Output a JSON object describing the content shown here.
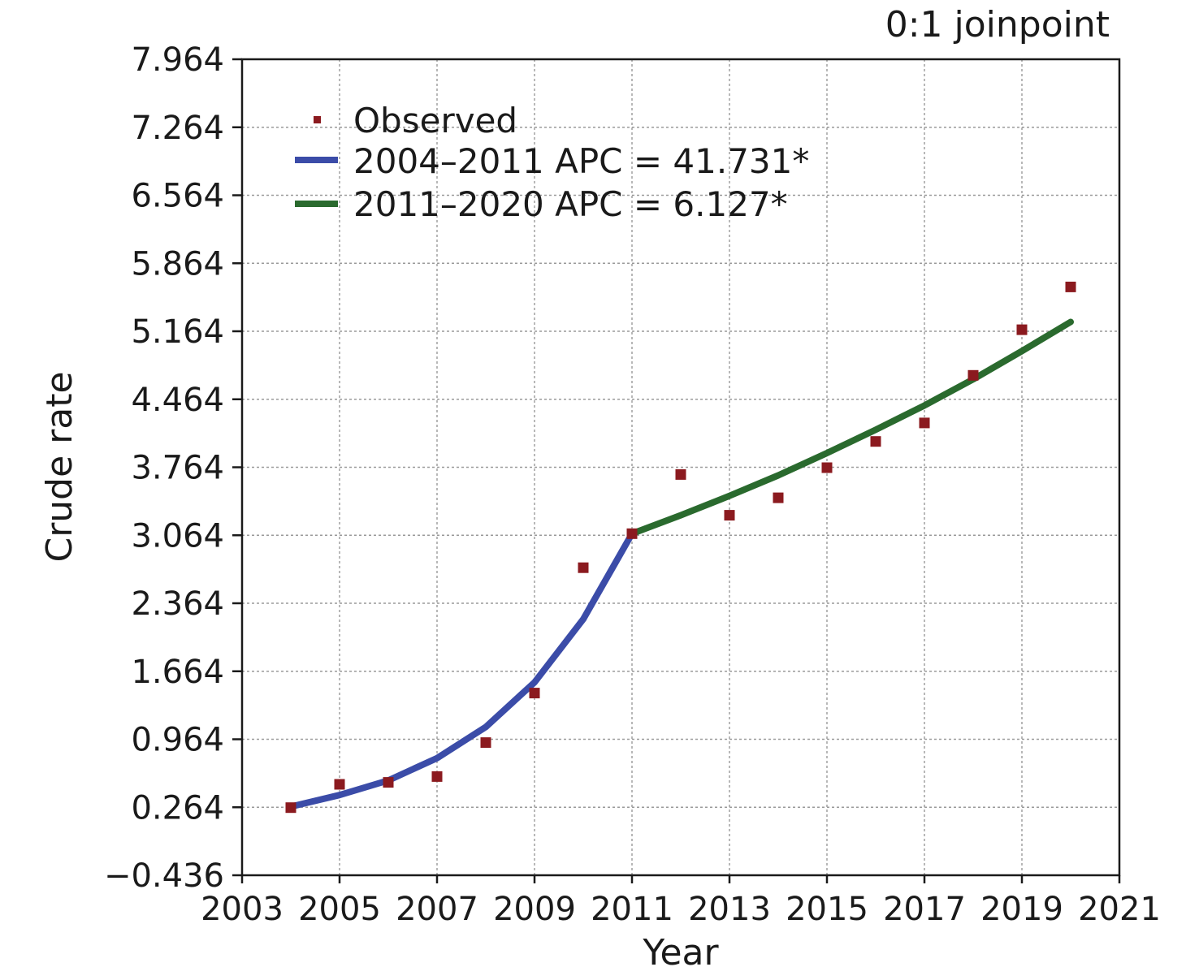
{
  "chart_data": {
    "type": "line",
    "annotation": "0:1 joinpoint",
    "xlabel": "Year",
    "ylabel": "Crude rate",
    "xlim": [
      2003,
      2021
    ],
    "ylim": [
      -0.436,
      7.964
    ],
    "x_ticks": [
      "2003",
      "2005",
      "2007",
      "2009",
      "2011",
      "2013",
      "2015",
      "2017",
      "2019",
      "2021"
    ],
    "y_ticks": [
      "-0.436",
      "0.264",
      "0.964",
      "1.664",
      "2.364",
      "3.064",
      "3.764",
      "4.464",
      "5.164",
      "5.864",
      "6.564",
      "7.264",
      "7.964"
    ],
    "grid": true,
    "legend_position": "top-left",
    "observed": {
      "name": "Observed",
      "color": "#8b1a1f",
      "x": [
        2004,
        2005,
        2006,
        2007,
        2008,
        2009,
        2010,
        2011,
        2012,
        2013,
        2014,
        2015,
        2016,
        2017,
        2018,
        2019,
        2020
      ],
      "y": [
        0.26,
        0.5,
        0.52,
        0.58,
        0.93,
        1.44,
        2.73,
        3.08,
        3.69,
        3.27,
        3.45,
        3.76,
        4.03,
        4.22,
        4.71,
        5.18,
        5.62
      ]
    },
    "series": [
      {
        "name": "2004–2011 APC = 41.731*",
        "color": "#3b4ca8",
        "x": [
          2004,
          2005,
          2006,
          2007,
          2008,
          2009,
          2010,
          2011
        ],
        "y": [
          0.27,
          0.39,
          0.54,
          0.77,
          1.09,
          1.55,
          2.2,
          3.08
        ]
      },
      {
        "name": "2011–2020 APC = 6.127*",
        "color": "#2a6a2e",
        "x": [
          2011,
          2012,
          2013,
          2014,
          2015,
          2016,
          2017,
          2018,
          2019,
          2020
        ],
        "y": [
          3.08,
          3.27,
          3.47,
          3.68,
          3.91,
          4.15,
          4.4,
          4.67,
          4.96,
          5.26
        ]
      }
    ]
  }
}
